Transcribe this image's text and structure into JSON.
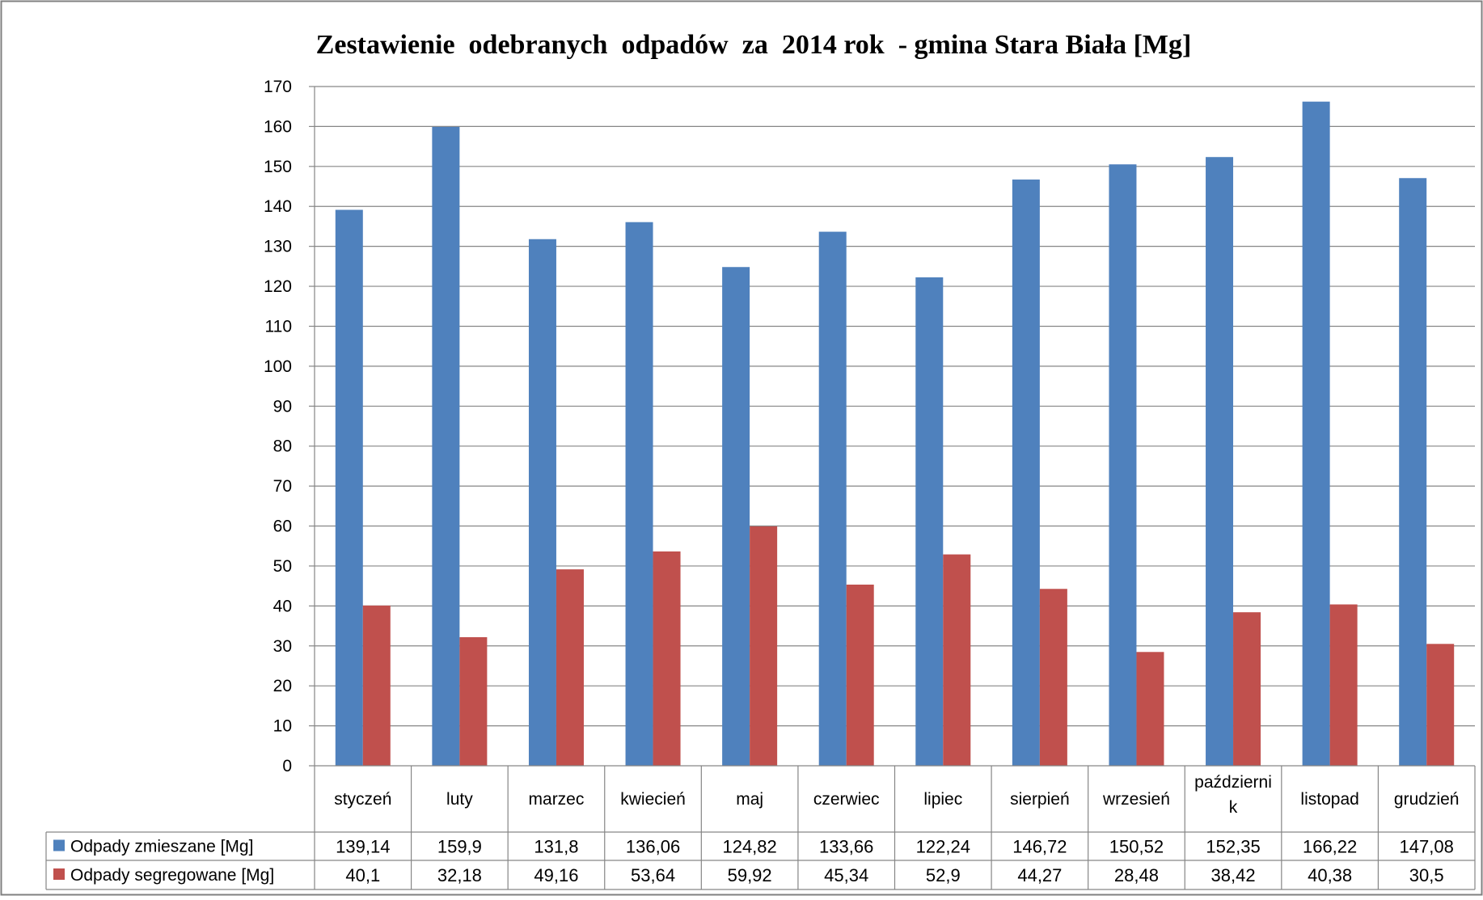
{
  "chart_data": {
    "type": "bar",
    "title": "Zestawienie  odebranych  odpadów  za  2014 rok  - gmina Stara Biała [Mg]",
    "categories": [
      "styczeń",
      "luty",
      "marzec",
      "kwiecień",
      "maj",
      "czerwiec",
      "lipiec",
      "sierpień",
      "wrzesień",
      "październik",
      "listopad",
      "grudzień"
    ],
    "category_lines": [
      [
        "styczeń"
      ],
      [
        "luty"
      ],
      [
        "marzec"
      ],
      [
        "kwiecień"
      ],
      [
        "maj"
      ],
      [
        "czerwiec"
      ],
      [
        "lipiec"
      ],
      [
        "sierpień"
      ],
      [
        "wrzesień"
      ],
      [
        "październi",
        "k"
      ],
      [
        "listopad"
      ],
      [
        "grudzień"
      ]
    ],
    "series": [
      {
        "name": "Odpady zmieszane [Mg]",
        "color": "#4f81bd",
        "values": [
          139.14,
          159.9,
          131.8,
          136.06,
          124.82,
          133.66,
          122.24,
          146.72,
          150.52,
          152.35,
          166.22,
          147.08
        ],
        "labels": [
          "139,14",
          "159,9",
          "131,8",
          "136,06",
          "124,82",
          "133,66",
          "122,24",
          "146,72",
          "150,52",
          "152,35",
          "166,22",
          "147,08"
        ]
      },
      {
        "name": "Odpady segregowane [Mg]",
        "color": "#c0504d",
        "values": [
          40.1,
          32.18,
          49.16,
          53.64,
          59.92,
          45.34,
          52.9,
          44.27,
          28.48,
          38.42,
          40.38,
          30.5
        ],
        "labels": [
          "40,1",
          "32,18",
          "49,16",
          "53,64",
          "59,92",
          "45,34",
          "52,9",
          "44,27",
          "28,48",
          "38,42",
          "40,38",
          "30,5"
        ]
      }
    ],
    "ylim": [
      0,
      170
    ],
    "yticks": [
      0,
      10,
      20,
      30,
      40,
      50,
      60,
      70,
      80,
      90,
      100,
      110,
      120,
      130,
      140,
      150,
      160,
      170
    ],
    "grid": true,
    "legend": "data table"
  }
}
